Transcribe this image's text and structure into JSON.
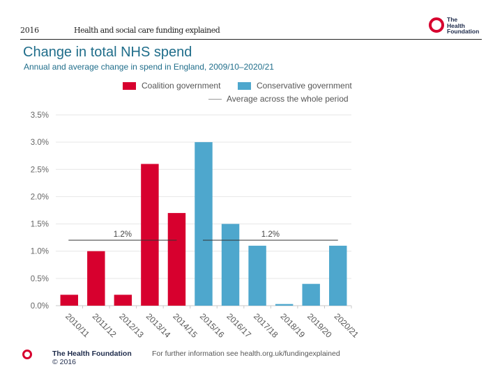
{
  "header": {
    "year": "2016",
    "document_title": "Health and social care funding explained"
  },
  "logo": {
    "text": "The\nHealth\nFoundation"
  },
  "footer": {
    "organisation": "The Health Foundation",
    "copyright": "© 2016",
    "info": "For further information see health.org.uk/fundingexplained"
  },
  "colors": {
    "coalition": "#d7002e",
    "conservative": "#4ea7cd",
    "average_line": "#333333",
    "title": "#1f6d8a",
    "gridline": "#e6e6e6"
  },
  "chart_data": {
    "type": "bar",
    "title": "Change in total NHS spend",
    "subtitle": "Annual and average change in spend in England, 2009/10–2020/21",
    "xlabel": "",
    "ylabel": "",
    "ylim": [
      0,
      3.5
    ],
    "yticks": [
      0,
      0.5,
      1.0,
      1.5,
      2.0,
      2.5,
      3.0,
      3.5
    ],
    "ytick_labels": [
      "0.0%",
      "0.5%",
      "1.0%",
      "1.5%",
      "2.0%",
      "2.5%",
      "3.0%",
      "3.5%"
    ],
    "grid": true,
    "legend_position": "top-right",
    "legend": [
      {
        "label": "Coalition government",
        "type": "bar",
        "series": "coalition"
      },
      {
        "label": "Conservative government",
        "type": "bar",
        "series": "conservative"
      },
      {
        "label": "Average across the whole period",
        "type": "line"
      }
    ],
    "categories": [
      "2010/11",
      "2011/12",
      "2012/13",
      "2013/14",
      "2014/15",
      "2015/16",
      "2016/17",
      "2017/18",
      "2018/19",
      "2019/20",
      "2020/21"
    ],
    "values": [
      0.2,
      1.0,
      0.2,
      2.6,
      1.7,
      3.0,
      1.5,
      1.1,
      0.03,
      0.4,
      1.1
    ],
    "series_assignment": [
      "coalition",
      "coalition",
      "coalition",
      "coalition",
      "coalition",
      "conservative",
      "conservative",
      "conservative",
      "conservative",
      "conservative",
      "conservative"
    ],
    "averages": [
      {
        "label": "1.2%",
        "value": 1.2,
        "from": "2010/11",
        "to": "2014/15"
      },
      {
        "label": "1.2%",
        "value": 1.2,
        "from": "2015/16",
        "to": "2020/21"
      }
    ]
  }
}
